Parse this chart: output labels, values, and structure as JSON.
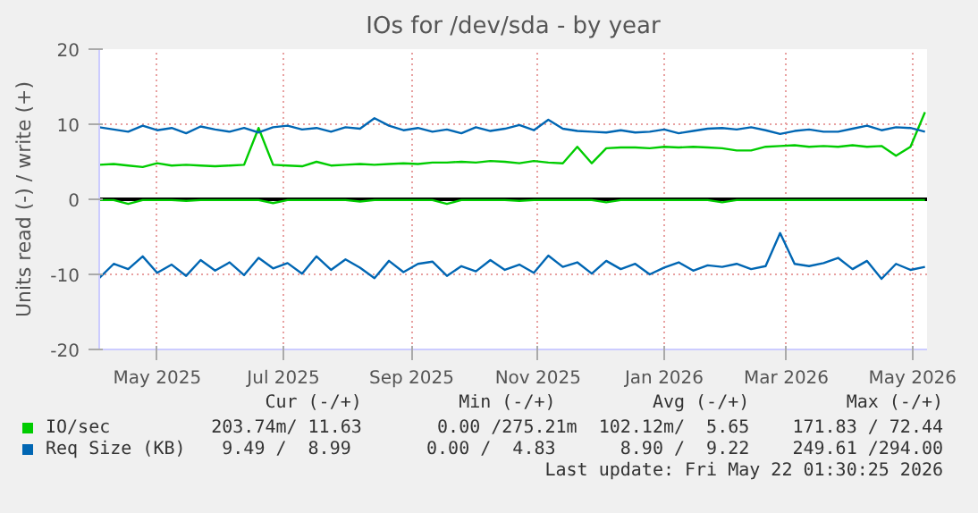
{
  "chart_data": {
    "type": "line",
    "title": "IOs for /dev/sda - by year",
    "ylabel": "Units read (-) / write (+)",
    "x": [
      "2025-04-17",
      "2025-04-24",
      "2025-05-01",
      "2025-05-08",
      "2025-05-15",
      "2025-05-22",
      "2025-05-29",
      "2025-06-05",
      "2025-06-12",
      "2025-06-19",
      "2025-06-26",
      "2025-07-03",
      "2025-07-10",
      "2025-07-17",
      "2025-07-24",
      "2025-07-31",
      "2025-08-07",
      "2025-08-14",
      "2025-08-21",
      "2025-08-28",
      "2025-09-04",
      "2025-09-11",
      "2025-09-18",
      "2025-09-25",
      "2025-10-02",
      "2025-10-09",
      "2025-10-16",
      "2025-10-23",
      "2025-10-30",
      "2025-11-06",
      "2025-11-13",
      "2025-11-20",
      "2025-11-27",
      "2025-12-04",
      "2025-12-11",
      "2025-12-18",
      "2025-12-25",
      "2026-01-01",
      "2026-01-08",
      "2026-01-15",
      "2026-01-22",
      "2026-01-29",
      "2026-02-05",
      "2026-02-12",
      "2026-02-19",
      "2026-02-26",
      "2026-03-05",
      "2026-03-12",
      "2026-03-19",
      "2026-03-26",
      "2026-04-02",
      "2026-04-09",
      "2026-04-16",
      "2026-04-23",
      "2026-04-30",
      "2026-05-07",
      "2026-05-14",
      "2026-05-21"
    ],
    "series": [
      {
        "name": "IO/sec",
        "color": "#00cc00",
        "values": [
          4.6,
          4.7,
          4.5,
          4.3,
          4.8,
          4.5,
          4.6,
          4.5,
          4.4,
          4.5,
          4.6,
          9.5,
          4.6,
          4.5,
          4.4,
          5.0,
          4.5,
          4.6,
          4.7,
          4.6,
          4.7,
          4.8,
          4.7,
          4.9,
          4.9,
          5.0,
          4.9,
          5.1,
          5.0,
          4.8,
          5.1,
          4.9,
          4.8,
          7.0,
          4.8,
          6.8,
          6.9,
          6.9,
          6.8,
          7.0,
          6.9,
          7.0,
          6.9,
          6.8,
          6.5,
          6.5,
          7.0,
          7.1,
          7.2,
          7.0,
          7.1,
          7.0,
          7.2,
          7.0,
          7.1,
          5.8,
          7.0,
          11.6
        ]
      },
      {
        "color": "#00cc00",
        "values": [
          -0.1,
          -0.1,
          -0.6,
          -0.1,
          -0.1,
          -0.1,
          -0.2,
          -0.1,
          -0.1,
          -0.1,
          -0.1,
          -0.1,
          -0.5,
          -0.1,
          -0.1,
          -0.1,
          -0.1,
          -0.1,
          -0.3,
          -0.1,
          -0.1,
          -0.1,
          -0.1,
          -0.1,
          -0.6,
          -0.1,
          -0.1,
          -0.1,
          -0.1,
          -0.2,
          -0.1,
          -0.1,
          -0.1,
          -0.1,
          -0.1,
          -0.4,
          -0.1,
          -0.1,
          -0.1,
          -0.1,
          -0.1,
          -0.1,
          -0.1,
          -0.4,
          -0.1,
          -0.1,
          -0.1,
          -0.1,
          -0.1,
          -0.1,
          -0.1,
          -0.1,
          -0.1,
          -0.1,
          -0.1,
          -0.1,
          -0.1,
          -0.1
        ]
      },
      {
        "name": "Req Size (KB)",
        "color": "#0066b3",
        "values": [
          9.6,
          9.3,
          9.0,
          9.8,
          9.2,
          9.5,
          8.8,
          9.7,
          9.3,
          9.0,
          9.5,
          8.9,
          9.6,
          9.8,
          9.3,
          9.5,
          9.0,
          9.6,
          9.4,
          10.8,
          9.8,
          9.2,
          9.5,
          9.0,
          9.3,
          8.8,
          9.6,
          9.1,
          9.4,
          9.9,
          9.2,
          10.6,
          9.4,
          9.1,
          9.0,
          8.9,
          9.2,
          8.9,
          9.0,
          9.3,
          8.8,
          9.1,
          9.4,
          9.5,
          9.3,
          9.6,
          9.2,
          8.7,
          9.1,
          9.3,
          9.0,
          9.0,
          9.4,
          9.8,
          9.2,
          9.6,
          9.5,
          9.0
        ]
      },
      {
        "color": "#0066b3",
        "values": [
          -10.5,
          -8.6,
          -9.3,
          -7.6,
          -9.8,
          -8.7,
          -10.2,
          -8.1,
          -9.5,
          -8.4,
          -10.1,
          -7.8,
          -9.2,
          -8.5,
          -9.9,
          -7.6,
          -9.4,
          -8.0,
          -9.1,
          -10.5,
          -8.2,
          -9.7,
          -8.6,
          -8.3,
          -10.2,
          -8.9,
          -9.6,
          -8.1,
          -9.4,
          -8.7,
          -9.8,
          -7.5,
          -9.0,
          -8.4,
          -9.9,
          -8.2,
          -9.3,
          -8.6,
          -10.0,
          -9.1,
          -8.4,
          -9.5,
          -8.8,
          -9.0,
          -8.6,
          -9.3,
          -8.9,
          -4.5,
          -8.6,
          -8.9,
          -8.5,
          -7.8,
          -9.3,
          -8.2,
          -10.6,
          -8.6,
          -9.4,
          -9.0
        ]
      }
    ],
    "xlim": [
      "2025-04-17",
      "2026-05-22"
    ],
    "xticks": [
      {
        "value": "2025-05-15",
        "label": "May 2025"
      },
      {
        "value": "2025-07-15",
        "label": "Jul 2025"
      },
      {
        "value": "2025-09-15",
        "label": "Sep 2025"
      },
      {
        "value": "2025-11-15",
        "label": "Nov 2025"
      },
      {
        "value": "2026-01-15",
        "label": "Jan 2026"
      },
      {
        "value": "2026-03-15",
        "label": "Mar 2026"
      },
      {
        "value": "2026-05-15",
        "label": "May 2026"
      }
    ],
    "ylim": [
      -20,
      20
    ],
    "yticks": [
      -20,
      -10,
      0,
      10,
      20
    ],
    "grid": true,
    "legend": "bottom",
    "ref_lines": [
      {
        "axis": "y",
        "value": 0,
        "color": "#000000"
      }
    ],
    "annotations": [
      "Cur (-/+)         Min (-/+)         Avg (-/+)         Max (-/+)",
      "203.74m/ 11.63       0.00 /275.21m  102.12m/  5.65    171.83 / 72.44",
      "9.49 /  8.99       0.00 /  4.83      8.90 /  9.22    249.61 /294.00",
      "Last update: Fri May 22 01:30:25 2026"
    ]
  }
}
